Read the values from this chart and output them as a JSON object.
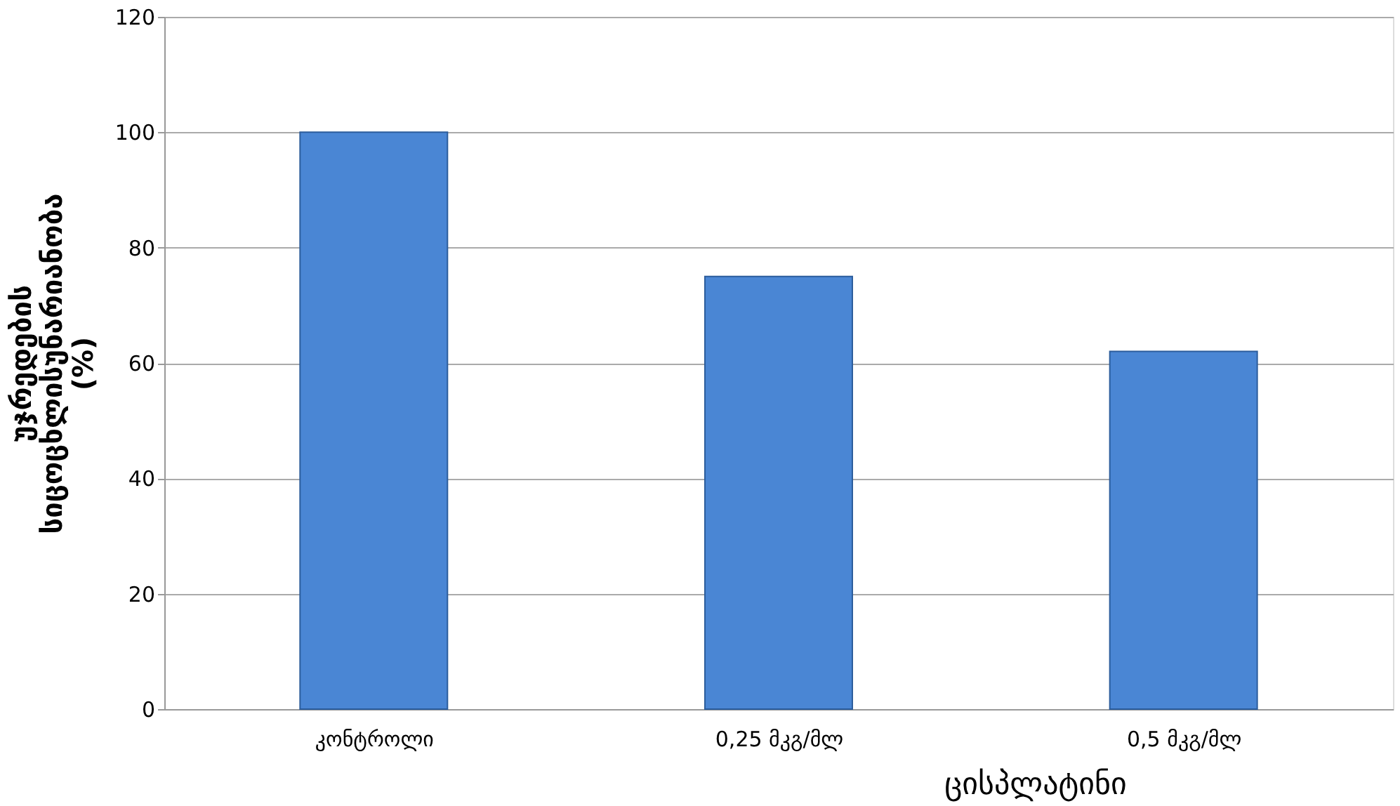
{
  "chart_data": {
    "type": "bar",
    "categories": [
      "კონტროლი",
      "0,25 მკგ/მლ",
      "0,5 მკგ/მლ"
    ],
    "values": [
      100,
      75,
      62
    ],
    "color": "#4a86d4",
    "ylabel": [
      "უჯრედების",
      "სიცოცხლისუნარიანობა",
      "(%)"
    ],
    "xlabel": "ცისპლატინი",
    "ylim": [
      0,
      120
    ],
    "yticks": [
      0,
      20,
      40,
      60,
      80,
      100,
      120
    ],
    "grid": "y"
  }
}
